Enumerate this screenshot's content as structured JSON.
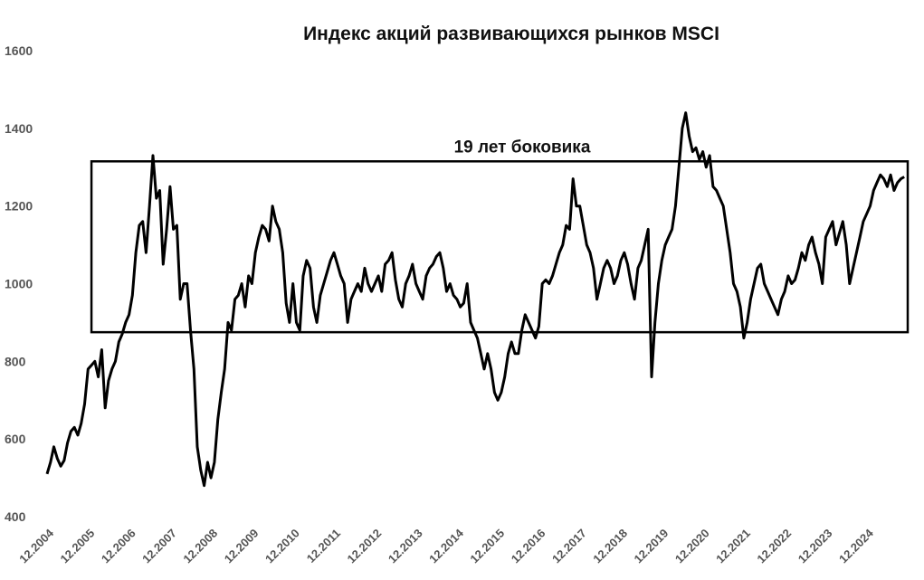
{
  "chart_data": {
    "type": "line",
    "title": "Индекс акций развивающихся рынков MSCI",
    "xlabel": "",
    "ylabel": "",
    "ylim": [
      400,
      1600
    ],
    "yticks": [
      "400",
      "600",
      "800",
      "1000",
      "1200",
      "1400",
      "1600"
    ],
    "xlim": [
      "2004-12",
      "2025-12"
    ],
    "xticks": [
      "12.2004",
      "12.2005",
      "12.2006",
      "12.2007",
      "12.2008",
      "12.2009",
      "12.2010",
      "12.2011",
      "12.2012",
      "12.2013",
      "12.2014",
      "12.2015",
      "12.2016",
      "12.2017",
      "12.2018",
      "12.2019",
      "12.2020",
      "12.2021",
      "12.2022",
      "12.2023",
      "12.2024"
    ],
    "grid": false,
    "legend": "none",
    "line_color": "#000000",
    "annotation": {
      "label": "19 лет боковика",
      "x_range": [
        "2006-01",
        "2025-12"
      ],
      "y_range": [
        875,
        1315
      ]
    },
    "series": [
      {
        "x": [
          "2004-12",
          "2005-01",
          "2005-02",
          "2005-03",
          "2005-04",
          "2005-05",
          "2005-06",
          "2005-07",
          "2005-08",
          "2005-09",
          "2005-10",
          "2005-11",
          "2005-12",
          "2006-01",
          "2006-02",
          "2006-03",
          "2006-04",
          "2006-05",
          "2006-06",
          "2006-07",
          "2006-08",
          "2006-09",
          "2006-10",
          "2006-11",
          "2006-12",
          "2007-01",
          "2007-02",
          "2007-03",
          "2007-04",
          "2007-05",
          "2007-06",
          "2007-07",
          "2007-08",
          "2007-09",
          "2007-10",
          "2007-11",
          "2007-12",
          "2008-01",
          "2008-02",
          "2008-03",
          "2008-04",
          "2008-05",
          "2008-06",
          "2008-07",
          "2008-08",
          "2008-09",
          "2008-10",
          "2008-11",
          "2008-12",
          "2009-01",
          "2009-02",
          "2009-03",
          "2009-04",
          "2009-05",
          "2009-06",
          "2009-07",
          "2009-08",
          "2009-09",
          "2009-10",
          "2009-11",
          "2009-12",
          "2010-01",
          "2010-02",
          "2010-03",
          "2010-04",
          "2010-05",
          "2010-06",
          "2010-07",
          "2010-08",
          "2010-09",
          "2010-10",
          "2010-11",
          "2010-12",
          "2011-01",
          "2011-02",
          "2011-03",
          "2011-04",
          "2011-05",
          "2011-06",
          "2011-07",
          "2011-08",
          "2011-09",
          "2011-10",
          "2011-11",
          "2011-12",
          "2012-01",
          "2012-02",
          "2012-03",
          "2012-04",
          "2012-05",
          "2012-06",
          "2012-07",
          "2012-08",
          "2012-09",
          "2012-10",
          "2012-11",
          "2012-12",
          "2013-01",
          "2013-02",
          "2013-03",
          "2013-04",
          "2013-05",
          "2013-06",
          "2013-07",
          "2013-08",
          "2013-09",
          "2013-10",
          "2013-11",
          "2013-12",
          "2014-01",
          "2014-02",
          "2014-03",
          "2014-04",
          "2014-05",
          "2014-06",
          "2014-07",
          "2014-08",
          "2014-09",
          "2014-10",
          "2014-11",
          "2014-12",
          "2015-01",
          "2015-02",
          "2015-03",
          "2015-04",
          "2015-05",
          "2015-06",
          "2015-07",
          "2015-08",
          "2015-09",
          "2015-10",
          "2015-11",
          "2015-12",
          "2016-01",
          "2016-02",
          "2016-03",
          "2016-04",
          "2016-05",
          "2016-06",
          "2016-07",
          "2016-08",
          "2016-09",
          "2016-10",
          "2016-11",
          "2016-12",
          "2017-01",
          "2017-02",
          "2017-03",
          "2017-04",
          "2017-05",
          "2017-06",
          "2017-07",
          "2017-08",
          "2017-09",
          "2017-10",
          "2017-11",
          "2017-12",
          "2018-01",
          "2018-02",
          "2018-03",
          "2018-04",
          "2018-05",
          "2018-06",
          "2018-07",
          "2018-08",
          "2018-09",
          "2018-10",
          "2018-11",
          "2018-12",
          "2019-01",
          "2019-02",
          "2019-03",
          "2019-04",
          "2019-05",
          "2019-06",
          "2019-07",
          "2019-08",
          "2019-09",
          "2019-10",
          "2019-11",
          "2019-12",
          "2020-01",
          "2020-02",
          "2020-03",
          "2020-04",
          "2020-05",
          "2020-06",
          "2020-07",
          "2020-08",
          "2020-09",
          "2020-10",
          "2020-11",
          "2020-12",
          "2021-01",
          "2021-02",
          "2021-03",
          "2021-04",
          "2021-05",
          "2021-06",
          "2021-07",
          "2021-08",
          "2021-09",
          "2021-10",
          "2021-11",
          "2021-12",
          "2022-01",
          "2022-02",
          "2022-03",
          "2022-04",
          "2022-05",
          "2022-06",
          "2022-07",
          "2022-08",
          "2022-09",
          "2022-10",
          "2022-11",
          "2022-12",
          "2023-01",
          "2023-02",
          "2023-03",
          "2023-04",
          "2023-05",
          "2023-06",
          "2023-07",
          "2023-08",
          "2023-09",
          "2023-10",
          "2023-11",
          "2023-12",
          "2024-01",
          "2024-02",
          "2024-03",
          "2024-04",
          "2024-05",
          "2024-06",
          "2024-07",
          "2024-08",
          "2024-09",
          "2024-10",
          "2024-11",
          "2024-12",
          "2025-01",
          "2025-02",
          "2025-03",
          "2025-04",
          "2025-05",
          "2025-06",
          "2025-07",
          "2025-08",
          "2025-09",
          "2025-10",
          "2025-11"
        ],
        "values": [
          510,
          540,
          580,
          550,
          530,
          545,
          590,
          620,
          630,
          610,
          640,
          690,
          780,
          790,
          800,
          760,
          830,
          680,
          750,
          780,
          800,
          850,
          870,
          900,
          920,
          970,
          1080,
          1150,
          1160,
          1080,
          1200,
          1330,
          1220,
          1240,
          1050,
          1140,
          1250,
          1140,
          1150,
          960,
          1000,
          1000,
          880,
          780,
          580,
          520,
          480,
          540,
          500,
          540,
          650,
          720,
          780,
          900,
          880,
          960,
          970,
          1000,
          940,
          1020,
          1000,
          1080,
          1120,
          1150,
          1140,
          1110,
          1200,
          1160,
          1140,
          1080,
          950,
          900,
          1000,
          900,
          880,
          1020,
          1060,
          1040,
          940,
          900,
          970,
          1000,
          1030,
          1060,
          1080,
          1050,
          1020,
          1000,
          900,
          960,
          980,
          1000,
          980,
          1040,
          1000,
          980,
          1000,
          1020,
          980,
          1050,
          1060,
          1080,
          1010,
          960,
          940,
          1000,
          1020,
          1050,
          1000,
          980,
          960,
          1020,
          1040,
          1050,
          1070,
          1080,
          1040,
          980,
          1000,
          970,
          960,
          940,
          950,
          1000,
          900,
          880,
          860,
          820,
          780,
          820,
          780,
          720,
          700,
          720,
          760,
          820,
          850,
          820,
          820,
          880,
          920,
          900,
          880,
          860,
          890,
          1000,
          1010,
          1000,
          1020,
          1050,
          1080,
          1100,
          1150,
          1140,
          1270,
          1200,
          1200,
          1150,
          1100,
          1080,
          1040,
          960,
          1000,
          1040,
          1060,
          1040,
          1000,
          1020,
          1060,
          1080,
          1050,
          1000,
          960,
          1040,
          1060,
          1100,
          1140,
          760,
          900,
          1000,
          1060,
          1100,
          1120,
          1140,
          1200,
          1300,
          1400,
          1440,
          1380,
          1340,
          1350,
          1320,
          1340,
          1300,
          1330,
          1250,
          1240,
          1220,
          1200,
          1140,
          1080,
          1000,
          980,
          940,
          860,
          900,
          960,
          1000,
          1040,
          1050,
          1000,
          980,
          960,
          940,
          920,
          960,
          980,
          1020,
          1000,
          1010,
          1040,
          1080,
          1060,
          1100,
          1120,
          1080,
          1050,
          1000,
          1120,
          1140,
          1160,
          1100,
          1130,
          1160,
          1100,
          1000,
          1040,
          1080,
          1120,
          1160,
          1180,
          1200,
          1240,
          1260,
          1280,
          1270,
          1250,
          1280,
          1240,
          1260,
          1270,
          1275
        ]
      }
    ]
  }
}
